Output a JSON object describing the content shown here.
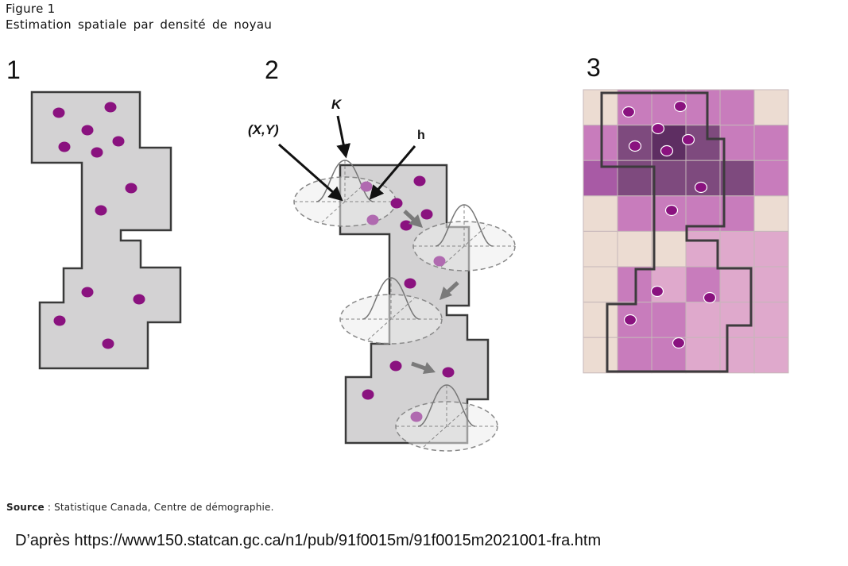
{
  "figure": {
    "label": "Figure 1",
    "title": "Estimation spatiale par densité de noyau"
  },
  "panels": [
    {
      "number": "1"
    },
    {
      "number": "2",
      "labels": {
        "point": "(X,Y)",
        "kernel": "K",
        "bandwidth": "h"
      }
    },
    {
      "number": "3"
    }
  ],
  "colors": {
    "polygon_fill": "#d3d2d3",
    "polygon_stroke": "#3a3a3a",
    "point": "#8a127f",
    "point_light": "#b06ab0",
    "arrow_gray": "#7a7a7a",
    "grid_beige": "#ecdcd2",
    "grid_pink_light": "#dfa9cc",
    "grid_pink": "#c87cbc",
    "grid_purple": "#a85aa5",
    "grid_dark": "#7e4a7e",
    "grid_darkest": "#5e2e62"
  },
  "source": {
    "prefix": "Source",
    "text": " : Statistique Canada, Centre de démographie."
  },
  "credit": "D’après https://www150.statcan.gc.ca/n1/pub/91f0015m/91f0015m2021001-fra.htm"
}
